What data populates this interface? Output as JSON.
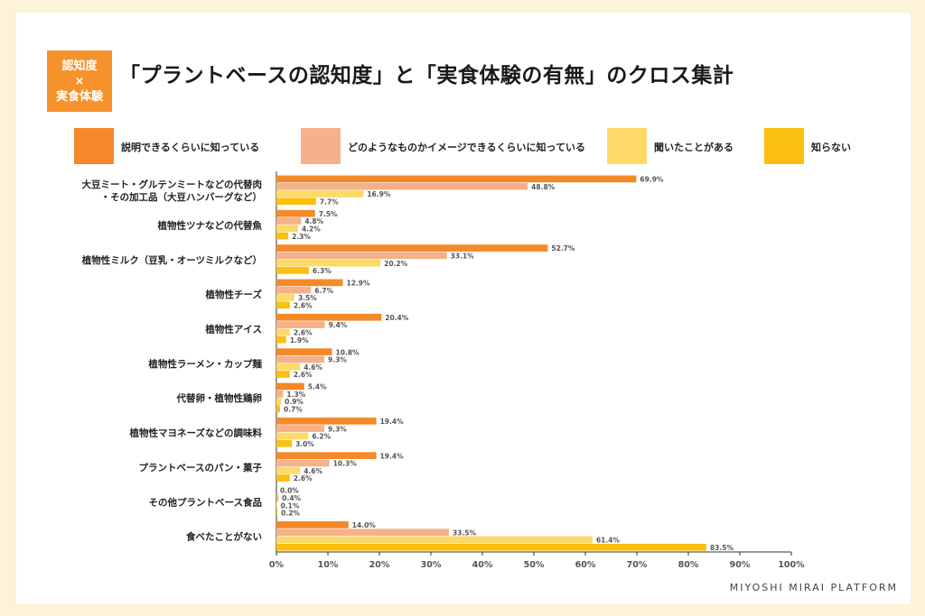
{
  "header": {
    "badge_line1": "認知度",
    "badge_line2": "×",
    "badge_line3": "実食体験",
    "title": "「プラントベースの認知度」と「実食体験の有無」のクロス集計"
  },
  "footer": {
    "brand": "MIYOSHI MIRAI PLATFORM"
  },
  "chart_data": {
    "type": "bar",
    "orientation": "horizontal",
    "title": "「プラントベースの認知度」と「実食体験の有無」のクロス集計",
    "categories": [
      [
        "大豆ミート・グルテンミートなどの代替肉",
        "・その加工品（大豆ハンバーグなど）"
      ],
      [
        "植物性ツナなどの代替魚"
      ],
      [
        "植物性ミルク（豆乳・オーツミルクなど）"
      ],
      [
        "植物性チーズ"
      ],
      [
        "植物性アイス"
      ],
      [
        "植物性ラーメン・カップ麺"
      ],
      [
        "代替卵・植物性鶏卵"
      ],
      [
        "植物性マヨネーズなどの調味料"
      ],
      [
        "プラントベースのパン・菓子"
      ],
      [
        "その他プラントベース食品"
      ],
      [
        "食べたことがない"
      ]
    ],
    "series": [
      {
        "name": "説明できるくらいに知っている",
        "color": "#f5892a",
        "values": [
          69.9,
          7.5,
          52.7,
          12.9,
          20.4,
          10.8,
          5.4,
          19.4,
          19.4,
          0.0,
          14.0
        ]
      },
      {
        "name": "どのようなものかイメージできるくらいに知っている",
        "color": "#f5b18a",
        "values": [
          48.8,
          4.8,
          33.1,
          6.7,
          9.4,
          9.3,
          1.3,
          9.3,
          10.3,
          0.4,
          33.5
        ]
      },
      {
        "name": "聞いたことがある",
        "color": "#fdd968",
        "values": [
          16.9,
          4.2,
          20.2,
          3.5,
          2.6,
          4.6,
          0.9,
          6.2,
          4.6,
          0.1,
          61.4
        ]
      },
      {
        "name": "知らない",
        "color": "#fbbf0f",
        "values": [
          7.7,
          2.3,
          6.3,
          2.6,
          1.9,
          2.6,
          0.7,
          3.0,
          2.6,
          0.2,
          83.5
        ]
      }
    ],
    "xlim": [
      0,
      100
    ],
    "xticks": [
      "0%",
      "10%",
      "20%",
      "30%",
      "40%",
      "50%",
      "60%",
      "70%",
      "80%",
      "90%",
      "100%"
    ],
    "value_suffix": "%",
    "legend_position": "top"
  }
}
